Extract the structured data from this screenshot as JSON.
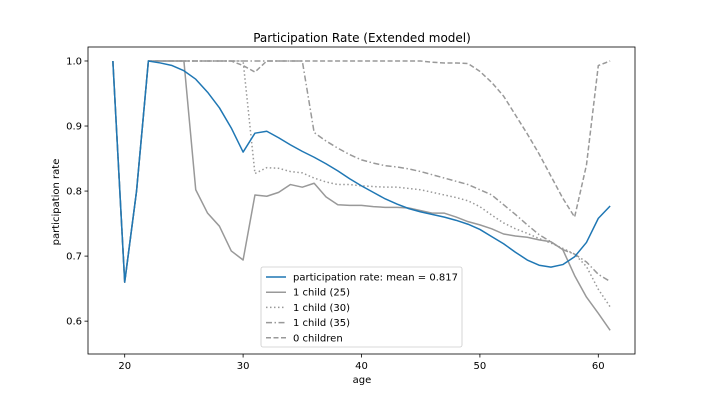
{
  "chart_data": {
    "type": "line",
    "title": "Participation Rate (Extended model)",
    "xlabel": "age",
    "ylabel": "participation rate",
    "xlim": [
      16.9,
      63.1
    ],
    "ylim": [
      0.5495,
      1.0215
    ],
    "xticks": [
      20,
      30,
      40,
      50,
      60
    ],
    "yticks": [
      0.6,
      0.7,
      0.8,
      0.9,
      1.0
    ],
    "ytick_labels": [
      "0.6",
      "0.7",
      "0.8",
      "0.9",
      "1.0"
    ],
    "grid": false,
    "legend_position": "lower center",
    "series": [
      {
        "name": "participation rate: mean = 0.817",
        "color": "#1f77b4",
        "style": "solid",
        "x": [
          19,
          20,
          21,
          22,
          23,
          24,
          25,
          26,
          27,
          28,
          29,
          30,
          31,
          32,
          33,
          34,
          35,
          36,
          37,
          38,
          39,
          40,
          41,
          42,
          43,
          44,
          45,
          46,
          47,
          48,
          49,
          50,
          51,
          52,
          53,
          54,
          55,
          56,
          57,
          58,
          59,
          60,
          61
        ],
        "y": [
          1.0,
          0.66,
          0.8,
          1.0,
          0.997,
          0.993,
          0.985,
          0.972,
          0.952,
          0.928,
          0.897,
          0.86,
          0.889,
          0.892,
          0.882,
          0.871,
          0.861,
          0.852,
          0.842,
          0.831,
          0.819,
          0.808,
          0.798,
          0.788,
          0.78,
          0.773,
          0.768,
          0.764,
          0.76,
          0.755,
          0.749,
          0.741,
          0.73,
          0.719,
          0.706,
          0.694,
          0.686,
          0.683,
          0.687,
          0.699,
          0.721,
          0.758,
          0.777
        ]
      },
      {
        "name": "1 child (25)",
        "color": "#999999",
        "style": "solid",
        "x": [
          19,
          20,
          21,
          22,
          23,
          24,
          25,
          26,
          27,
          28,
          29,
          30,
          31,
          32,
          33,
          34,
          35,
          36,
          37,
          38,
          39,
          40,
          41,
          42,
          43,
          44,
          45,
          46,
          47,
          48,
          49,
          50,
          51,
          52,
          53,
          54,
          55,
          56,
          57,
          58,
          59,
          60,
          61
        ],
        "y": [
          1.0,
          0.66,
          0.8,
          1.0,
          1.0,
          1.0,
          1.0,
          0.802,
          0.766,
          0.746,
          0.708,
          0.694,
          0.794,
          0.792,
          0.798,
          0.81,
          0.806,
          0.812,
          0.791,
          0.779,
          0.778,
          0.778,
          0.776,
          0.775,
          0.775,
          0.774,
          0.77,
          0.766,
          0.766,
          0.76,
          0.753,
          0.748,
          0.742,
          0.734,
          0.731,
          0.729,
          0.725,
          0.722,
          0.71,
          0.67,
          0.637,
          0.612,
          0.586
        ]
      },
      {
        "name": "1 child (30)",
        "color": "#999999",
        "style": "dotted",
        "x": [
          19,
          20,
          21,
          22,
          23,
          24,
          25,
          26,
          27,
          28,
          29,
          30,
          31,
          32,
          33,
          34,
          35,
          36,
          37,
          38,
          39,
          40,
          41,
          42,
          43,
          44,
          45,
          46,
          47,
          48,
          49,
          50,
          51,
          52,
          53,
          54,
          55,
          56,
          57,
          58,
          59,
          60,
          61
        ],
        "y": [
          1.0,
          0.66,
          0.8,
          1.0,
          1.0,
          1.0,
          1.0,
          1.0,
          1.0,
          1.0,
          1.0,
          1.0,
          0.827,
          0.836,
          0.835,
          0.83,
          0.828,
          0.82,
          0.814,
          0.81,
          0.81,
          0.808,
          0.807,
          0.806,
          0.806,
          0.804,
          0.802,
          0.798,
          0.794,
          0.79,
          0.785,
          0.776,
          0.763,
          0.751,
          0.742,
          0.735,
          0.727,
          0.72,
          0.712,
          0.703,
          0.684,
          0.649,
          0.622
        ]
      },
      {
        "name": "1 child (35)",
        "color": "#999999",
        "style": "dashdot",
        "x": [
          19,
          20,
          21,
          22,
          23,
          24,
          25,
          26,
          27,
          28,
          29,
          30,
          31,
          32,
          33,
          34,
          35,
          36,
          37,
          38,
          39,
          40,
          41,
          42,
          43,
          44,
          45,
          46,
          47,
          48,
          49,
          50,
          51,
          52,
          53,
          54,
          55,
          56,
          57,
          58,
          59,
          60,
          61
        ],
        "y": [
          1.0,
          0.66,
          0.8,
          1.0,
          1.0,
          1.0,
          1.0,
          1.0,
          1.0,
          1.0,
          1.0,
          1.0,
          1.0,
          1.0,
          1.0,
          1.0,
          1.0,
          0.89,
          0.877,
          0.866,
          0.856,
          0.848,
          0.843,
          0.839,
          0.837,
          0.834,
          0.83,
          0.825,
          0.82,
          0.815,
          0.81,
          0.802,
          0.794,
          0.779,
          0.764,
          0.748,
          0.733,
          0.722,
          0.71,
          0.703,
          0.691,
          0.672,
          0.661
        ]
      },
      {
        "name": "0 children",
        "color": "#999999",
        "style": "dashed",
        "x": [
          19,
          20,
          21,
          22,
          23,
          24,
          25,
          26,
          27,
          28,
          29,
          30,
          31,
          32,
          33,
          34,
          35,
          36,
          37,
          38,
          39,
          40,
          41,
          42,
          43,
          44,
          45,
          46,
          47,
          48,
          49,
          50,
          51,
          52,
          53,
          54,
          55,
          56,
          57,
          58,
          59,
          60,
          61
        ],
        "y": [
          1.0,
          0.66,
          0.8,
          1.0,
          1.0,
          1.0,
          1.0,
          1.0,
          1.0,
          1.0,
          1.0,
          0.993,
          0.983,
          1.0,
          1.0,
          1.0,
          1.0,
          1.0,
          1.0,
          1.0,
          1.0,
          1.0,
          1.0,
          1.0,
          1.0,
          1.0,
          1.0,
          0.998,
          0.997,
          0.997,
          0.996,
          0.984,
          0.967,
          0.946,
          0.917,
          0.888,
          0.857,
          0.823,
          0.789,
          0.76,
          0.84,
          0.993,
          1.0
        ]
      }
    ]
  }
}
